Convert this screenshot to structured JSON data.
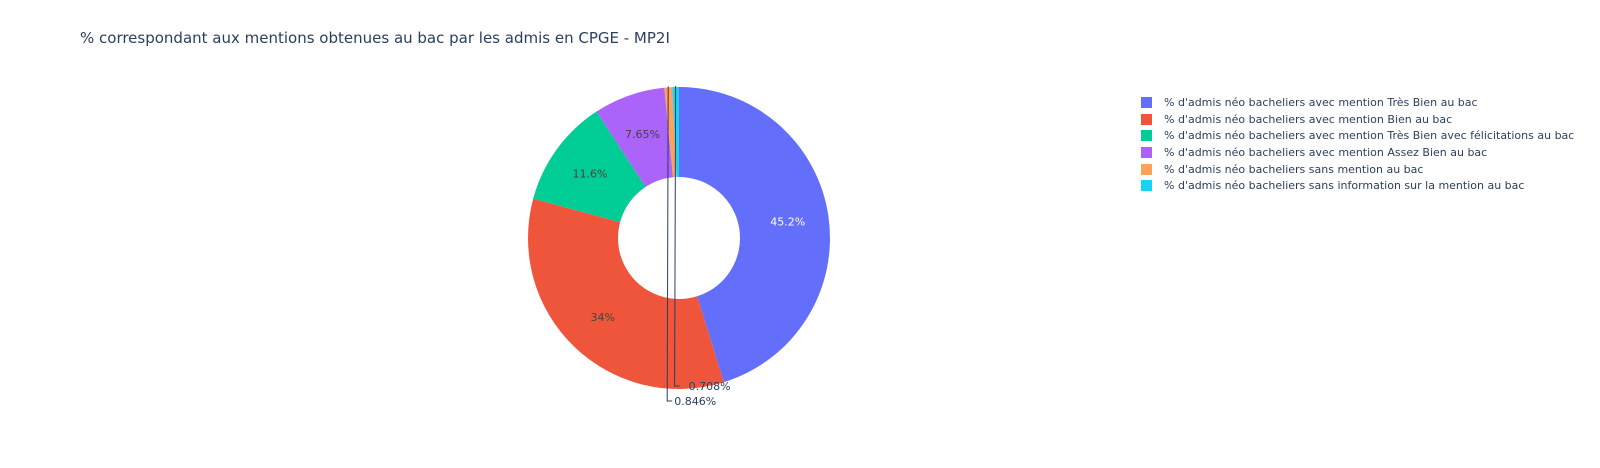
{
  "chart_data": {
    "type": "pie",
    "hole": true,
    "title": "% correspondant aux mentions obtenues au bac par les admis en CPGE - MP2I",
    "legend_position": "top-right",
    "slices": [
      {
        "label": "% d'admis néo bacheliers avec mention Très Bien au bac",
        "value": 45.2,
        "display": "45.2%",
        "color": "#636efa",
        "label_color": "#ffffff",
        "label_outside": false
      },
      {
        "label": "% d'admis néo bacheliers avec mention Bien au bac",
        "value": 34,
        "display": "34%",
        "color": "#ef553b",
        "label_color": "#444444",
        "label_outside": false
      },
      {
        "label": "% d'admis néo bacheliers avec mention Très Bien avec félicitations au bac",
        "value": 11.6,
        "display": "11.6%",
        "color": "#00cc96",
        "label_color": "#444444",
        "label_outside": false
      },
      {
        "label": "% d'admis néo bacheliers avec mention Assez Bien au bac",
        "value": 7.65,
        "display": "7.65%",
        "color": "#ab63fa",
        "label_color": "#444444",
        "label_outside": false
      },
      {
        "label": "% d'admis néo bacheliers sans mention au bac",
        "value": 0.846,
        "display": "0.846%",
        "color": "#ffa15a",
        "label_color": "#2a3f5f",
        "label_outside": true
      },
      {
        "label": "% d'admis néo bacheliers sans information sur la mention au bac",
        "value": 0.708,
        "display": "0.708%",
        "color": "#19d3f3",
        "label_color": "#2a3f5f",
        "label_outside": true
      }
    ]
  }
}
